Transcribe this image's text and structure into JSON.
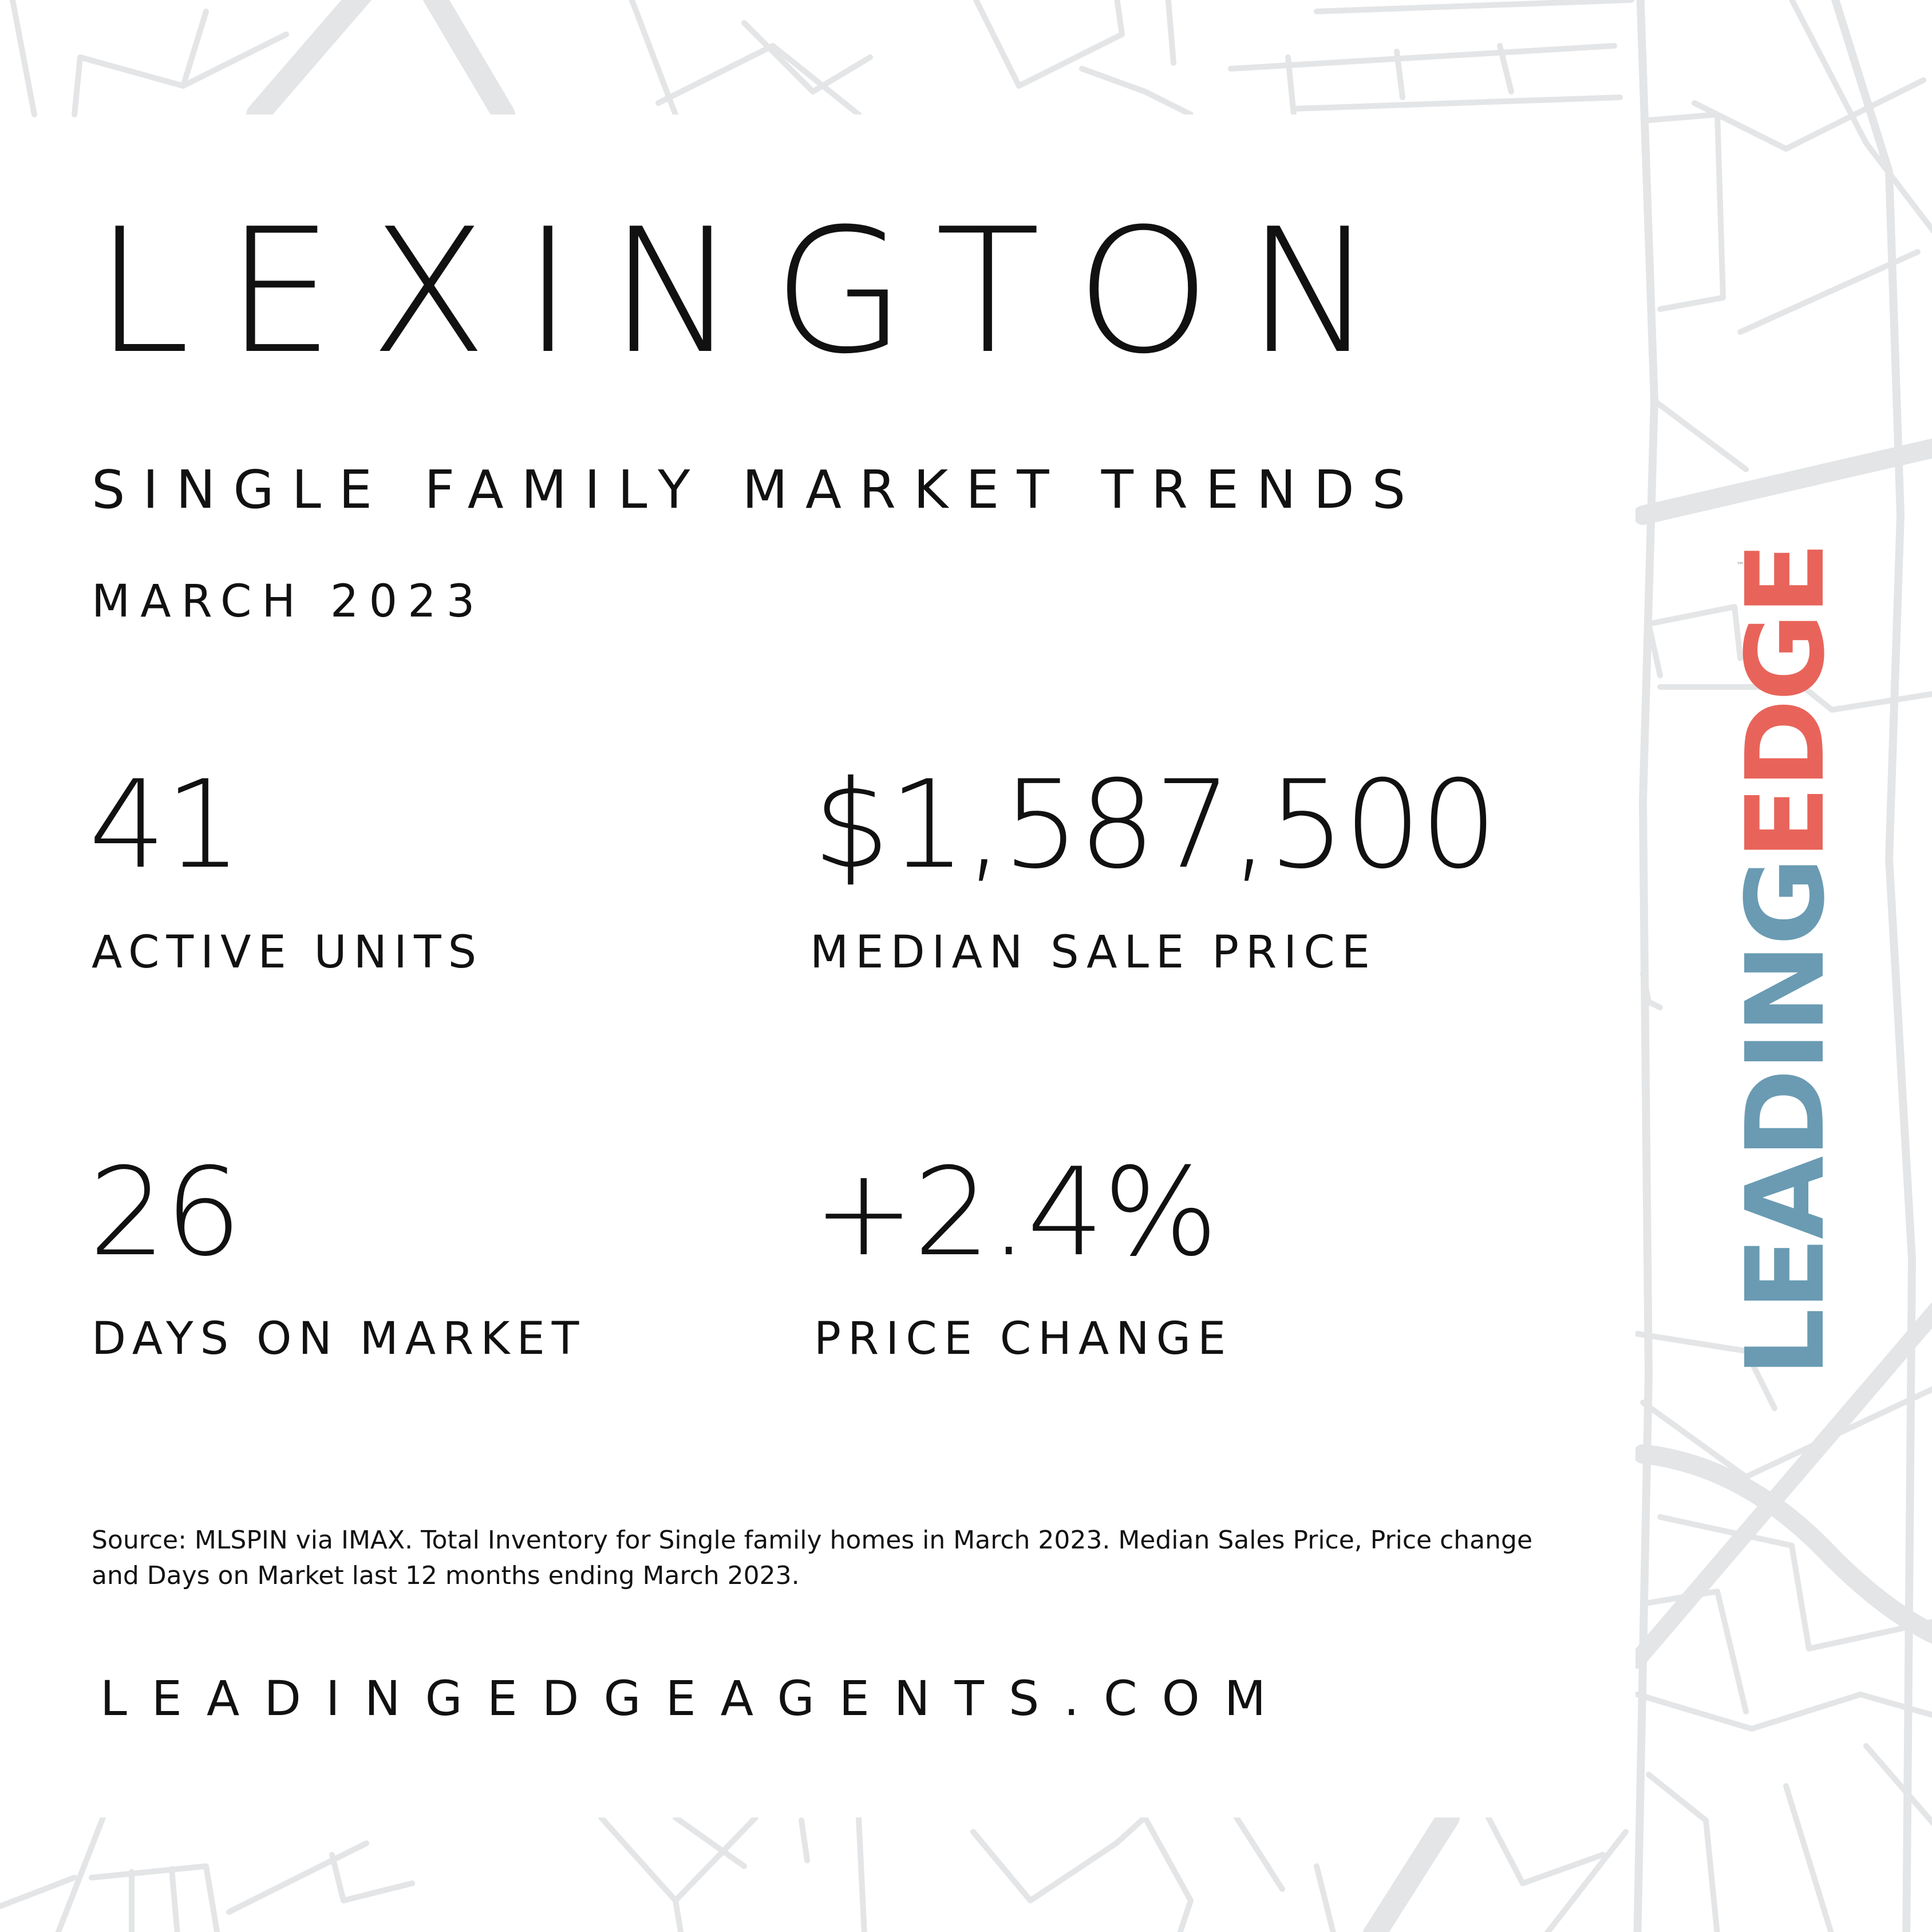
{
  "header": {
    "city": "LEXINGTON",
    "subtitle": "SINGLE FAMILY MARKET TRENDS",
    "period": "MARCH 2023"
  },
  "stats": {
    "active_units": {
      "value": "41",
      "label": "ACTIVE UNITS"
    },
    "median_sale_price": {
      "value": "$1,587,500",
      "label": "MEDIAN SALE PRICE"
    },
    "days_on_market": {
      "value": "26",
      "label": "DAYS ON MARKET"
    },
    "price_change": {
      "value": "+2.4%",
      "label": "PRICE CHANGE"
    }
  },
  "footer": {
    "source": "Source: MLSPIN via IMAX. Total Inventory for Single family homes in March 2023. Median Sales Price, Price change and Days on Market last 12 months ending March 2023.",
    "website": "LEADINGEDGEAGENTS.COM"
  },
  "logo": {
    "part1": "LEADING",
    "part2": "EDGE",
    "tm": "™",
    "colors": {
      "leading": "#6a9bb3",
      "edge": "#e8645a"
    }
  },
  "colors": {
    "background": "#ffffff",
    "text": "#111111",
    "map_lines": "#e3e5e7"
  }
}
